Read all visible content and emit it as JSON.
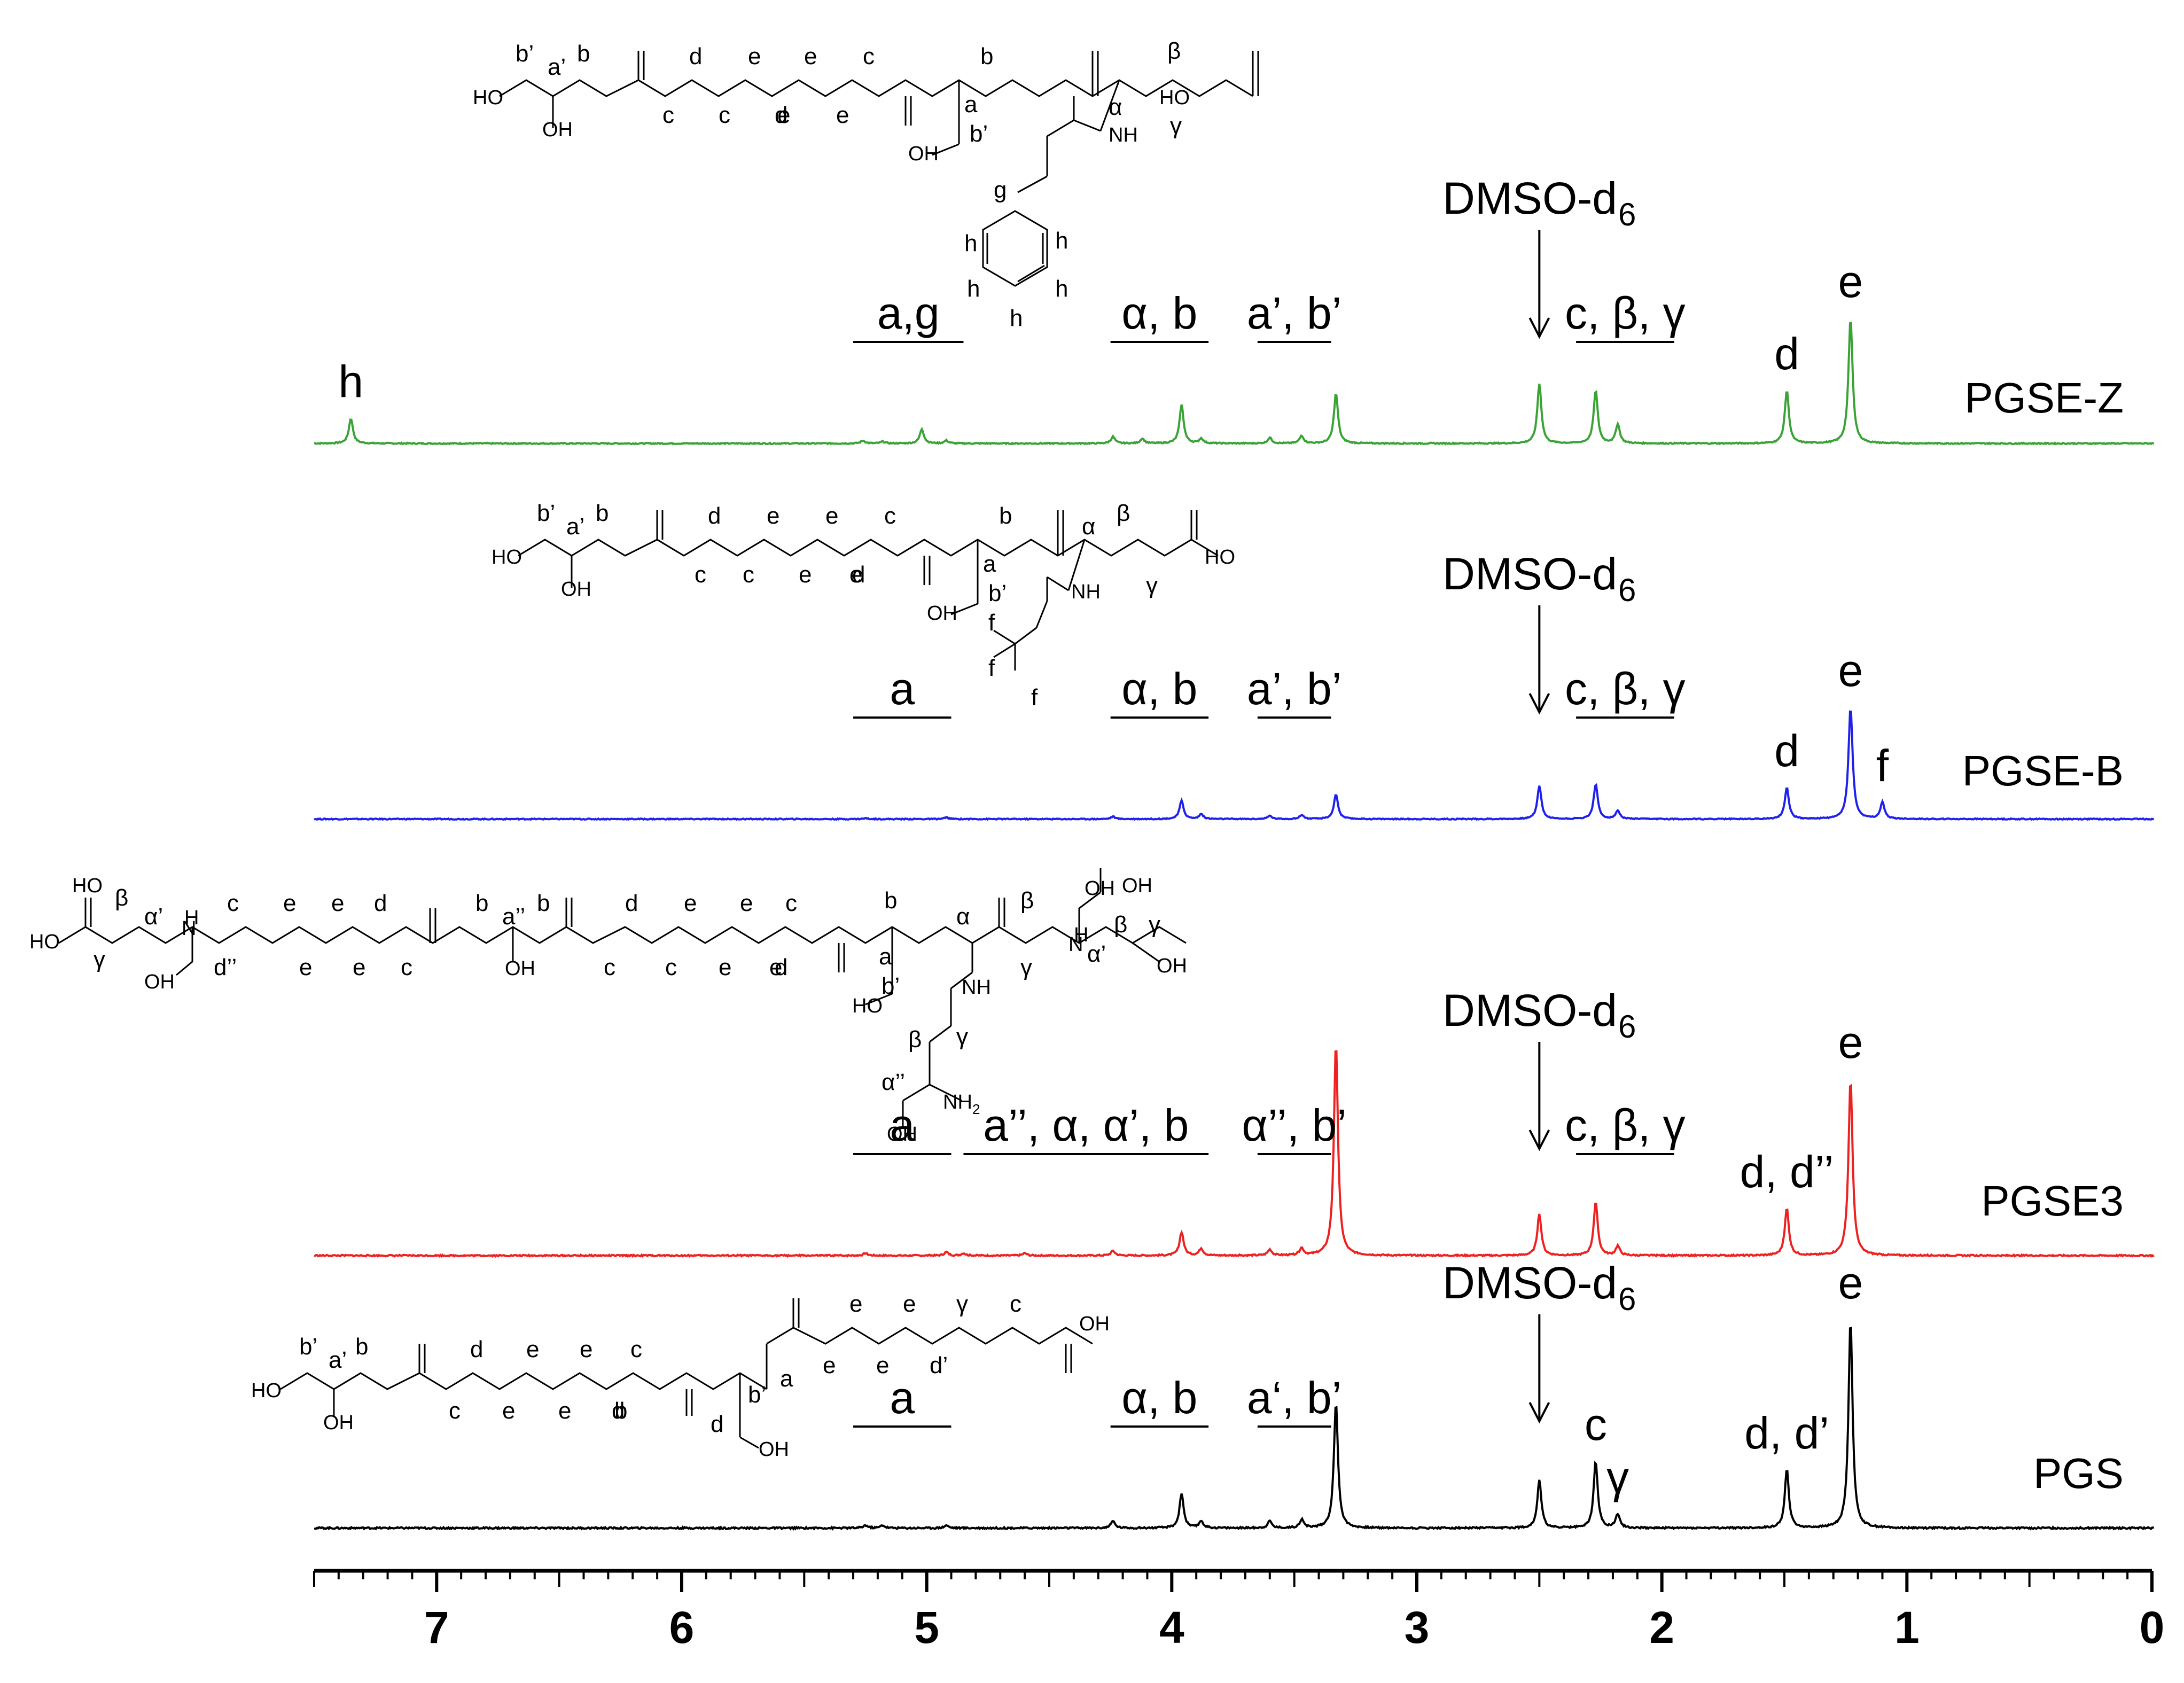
{
  "chart_data": {
    "type": "line",
    "title": "",
    "xlabel": "",
    "ylabel": "",
    "x_axis": {
      "range": [
        0,
        7.5
      ],
      "reversed": true,
      "ticks": [
        7,
        6,
        5,
        4,
        3,
        2,
        1,
        0
      ]
    },
    "series": [
      {
        "name": "PGSE-Z",
        "color": "#3aa335",
        "peaks": [
          [
            7.35,
            0.26
          ],
          [
            5.26,
            0.03
          ],
          [
            5.18,
            0.02
          ],
          [
            5.02,
            0.15
          ],
          [
            4.92,
            0.03
          ],
          [
            4.24,
            0.07
          ],
          [
            4.12,
            0.05
          ],
          [
            3.96,
            0.4
          ],
          [
            3.88,
            0.05
          ],
          [
            3.6,
            0.06
          ],
          [
            3.47,
            0.08
          ],
          [
            3.33,
            0.52
          ],
          [
            2.5,
            0.62
          ],
          [
            2.27,
            0.55
          ],
          [
            2.18,
            0.2
          ],
          [
            1.49,
            0.55
          ],
          [
            1.23,
            1.3
          ]
        ],
        "annotations": [
          {
            "text": "h",
            "shift": 7.35
          },
          {
            "text": "a,g",
            "range": [
              5.3,
              4.85
            ]
          },
          {
            "text": "α, b",
            "range": [
              4.25,
              3.85
            ]
          },
          {
            "text": "a’, b’",
            "range": [
              3.65,
              3.35
            ]
          },
          {
            "text": "DMSO-d",
            "sub": "6",
            "arrow_at": 2.5
          },
          {
            "text": "c, β, γ",
            "range": [
              2.35,
              1.95
            ]
          },
          {
            "text": "d",
            "shift": 1.49
          },
          {
            "text": "e",
            "shift": 1.23
          }
        ]
      },
      {
        "name": "PGSE-B",
        "color": "#2020ee",
        "peaks": [
          [
            5.25,
            0.01
          ],
          [
            4.92,
            0.02
          ],
          [
            4.24,
            0.03
          ],
          [
            3.96,
            0.22
          ],
          [
            3.88,
            0.06
          ],
          [
            3.6,
            0.04
          ],
          [
            3.47,
            0.05
          ],
          [
            3.33,
            0.3
          ],
          [
            2.5,
            0.4
          ],
          [
            2.27,
            0.42
          ],
          [
            2.18,
            0.1
          ],
          [
            1.49,
            0.38
          ],
          [
            1.23,
            1.35
          ],
          [
            1.1,
            0.2
          ]
        ],
        "annotations": [
          {
            "text": "a",
            "range": [
              5.3,
              4.9
            ]
          },
          {
            "text": "α, b",
            "range": [
              4.25,
              3.85
            ]
          },
          {
            "text": "a’, b’",
            "range": [
              3.65,
              3.35
            ]
          },
          {
            "text": "DMSO-d",
            "sub": "6",
            "arrow_at": 2.5
          },
          {
            "text": "c, β, γ",
            "range": [
              2.35,
              1.95
            ]
          },
          {
            "text": "d",
            "shift": 1.49
          },
          {
            "text": "e",
            "shift": 1.23
          },
          {
            "text": "f",
            "shift": 1.1
          }
        ]
      },
      {
        "name": "PGSE3",
        "color": "#ee2020",
        "peaks": [
          [
            5.25,
            0.02
          ],
          [
            4.92,
            0.03
          ],
          [
            4.85,
            0.02
          ],
          [
            4.6,
            0.02
          ],
          [
            4.24,
            0.04
          ],
          [
            3.96,
            0.2
          ],
          [
            3.88,
            0.06
          ],
          [
            3.6,
            0.05
          ],
          [
            3.47,
            0.06
          ],
          [
            3.33,
            1.8
          ],
          [
            2.5,
            0.35
          ],
          [
            2.27,
            0.45
          ],
          [
            2.18,
            0.08
          ],
          [
            1.49,
            0.4
          ],
          [
            1.23,
            1.5
          ]
        ],
        "annotations": [
          {
            "text": "a",
            "range": [
              5.3,
              4.9
            ]
          },
          {
            "text": "a’’, α, α’, b",
            "range": [
              4.85,
              3.85
            ]
          },
          {
            "text": "α’’, b’",
            "range": [
              3.65,
              3.35
            ]
          },
          {
            "text": "DMSO-d",
            "sub": "6",
            "arrow_at": 2.5
          },
          {
            "text": "c, β, γ",
            "range": [
              2.35,
              1.95
            ]
          },
          {
            "text": "d, d’’",
            "shift": 1.49
          },
          {
            "text": "e",
            "shift": 1.23
          }
        ]
      },
      {
        "name": "PGS",
        "color": "#000000",
        "peaks": [
          [
            5.25,
            0.02
          ],
          [
            5.18,
            0.02
          ],
          [
            4.92,
            0.02
          ],
          [
            4.24,
            0.05
          ],
          [
            3.96,
            0.25
          ],
          [
            3.88,
            0.05
          ],
          [
            3.6,
            0.05
          ],
          [
            3.47,
            0.06
          ],
          [
            3.33,
            0.9
          ],
          [
            2.5,
            0.34
          ],
          [
            2.27,
            0.48
          ],
          [
            2.18,
            0.1
          ],
          [
            1.49,
            0.42
          ],
          [
            1.23,
            1.5
          ]
        ],
        "annotations": [
          {
            "text": "a",
            "range": [
              5.3,
              4.9
            ]
          },
          {
            "text": "α, b",
            "range": [
              4.25,
              3.85
            ]
          },
          {
            "text": "a‘, b’",
            "range": [
              3.65,
              3.35
            ]
          },
          {
            "text": "DMSO-d",
            "sub": "6",
            "arrow_at": 2.5
          },
          {
            "text": "c",
            "shift": 2.27
          },
          {
            "text": "γ",
            "shift": 2.18
          },
          {
            "text": "d, d’",
            "shift": 1.49
          },
          {
            "text": "e",
            "shift": 1.23
          }
        ]
      }
    ]
  },
  "structures": {
    "PGSE-Z": {
      "oh": [
        "HO",
        "OH",
        "OH",
        "HO"
      ],
      "letters": [
        "b’",
        "a’",
        "b",
        "c",
        "d",
        "e",
        "e",
        "c",
        "c",
        "e",
        "e",
        "d",
        "b",
        "a",
        "b’",
        "α",
        "β",
        "γ",
        "NH",
        "g",
        "h",
        "h",
        "h",
        "h",
        "h"
      ]
    },
    "PGSE-B": {
      "oh": [
        "HO",
        "OH",
        "OH",
        "HO"
      ],
      "letters": [
        "b’",
        "a’",
        "b",
        "c",
        "d",
        "e",
        "e",
        "c",
        "c",
        "e",
        "e",
        "d",
        "b",
        "a",
        "b’",
        "α",
        "β",
        "γ",
        "NH",
        "f",
        "f",
        "f"
      ]
    },
    "PGSE3": {
      "oh": [
        "HO",
        "OH",
        "OH",
        "HO",
        "OH",
        "OH",
        "OH",
        "HO",
        "OH"
      ],
      "letters": [
        "β",
        "α’",
        "N",
        "H",
        "γ",
        "c",
        "e",
        "e",
        "d",
        "d’’",
        "e",
        "e",
        "c",
        "b",
        "a’’",
        "b",
        "c",
        "d",
        "e",
        "e",
        "c",
        "c",
        "e",
        "e",
        "d",
        "b",
        "a",
        "b’",
        "α",
        "β",
        "γ",
        "NH",
        "β",
        "γ",
        "N",
        "H",
        "α’",
        "β",
        "γ",
        "α’’",
        "NH",
        "2"
      ]
    },
    "PGS": {
      "oh": [
        "HO",
        "OH",
        "OH",
        "OH"
      ],
      "letters": [
        "b’",
        "a’",
        "b",
        "d",
        "e",
        "e",
        "c",
        "c",
        "e",
        "e",
        "d",
        "b",
        "a",
        "b’",
        "d",
        "e",
        "e",
        "γ",
        "c",
        "e",
        "e",
        "d’"
      ]
    }
  }
}
